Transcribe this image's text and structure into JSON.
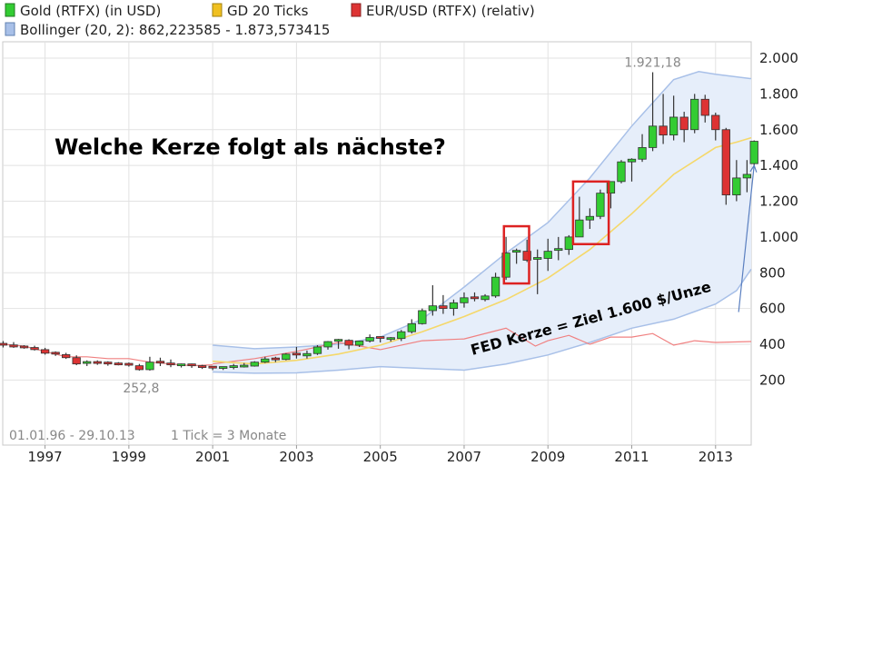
{
  "slide": {
    "headline": "Welche Kerze folgt als nächste?",
    "note": "FED Kerze = Ziel 1.600 $/Unze"
  },
  "legend": [
    {
      "label": "Gold (RTFX) (in USD)",
      "color": "#33cc33"
    },
    {
      "label": "GD 20 Ticks",
      "color": "#f0c020"
    },
    {
      "label": "EUR/USD (RTFX) (relativ)",
      "color": "#dd3333"
    },
    {
      "label": "Bollinger (20, 2): 862,223585 - 1.873,573415",
      "color": "#a8c0e8"
    }
  ],
  "colors": {
    "up": "#33cc33",
    "down": "#dd3333",
    "ma": "#f5d86a",
    "eurusd": "#f08080",
    "band_fill": "#e6eefa",
    "band_line": "#a8c0e8",
    "highlight": "#dd2222",
    "arrow": "#5a7fc0"
  },
  "chart_data": {
    "type": "candlestick",
    "ylim": [
      0,
      2100
    ],
    "yticks": [
      200,
      400,
      600,
      800,
      1000,
      1200,
      1400,
      1600,
      1800,
      2000
    ],
    "ytick_labels": [
      "200",
      "400",
      "600",
      "800",
      "1.000",
      "1.200",
      "1.400",
      "1.600",
      "1.800",
      "2.000"
    ],
    "xlim": [
      1995.99,
      2013.85
    ],
    "xticks": [
      1997,
      1999,
      2001,
      2003,
      2005,
      2007,
      2009,
      2011,
      2013
    ],
    "xtick_labels": [
      "1997",
      "1999",
      "2001",
      "2003",
      "2005",
      "2007",
      "2009",
      "2011",
      "2013"
    ],
    "annotations": {
      "max_label": "1.921,18",
      "min_label": "252,8",
      "range_label": "01.01.96 - 29.10.13",
      "tick_label": "1 Tick = 3 Monate"
    },
    "candles": [
      {
        "t": 1996.0,
        "o": 400,
        "h": 418,
        "l": 382,
        "c": 396
      },
      {
        "t": 1996.25,
        "o": 396,
        "h": 412,
        "l": 380,
        "c": 385
      },
      {
        "t": 1996.5,
        "o": 385,
        "h": 395,
        "l": 375,
        "c": 382
      },
      {
        "t": 1996.75,
        "o": 382,
        "h": 392,
        "l": 365,
        "c": 370
      },
      {
        "t": 1997.0,
        "o": 370,
        "h": 380,
        "l": 342,
        "c": 350
      },
      {
        "t": 1997.25,
        "o": 350,
        "h": 360,
        "l": 335,
        "c": 342
      },
      {
        "t": 1997.5,
        "o": 342,
        "h": 352,
        "l": 318,
        "c": 325
      },
      {
        "t": 1997.75,
        "o": 325,
        "h": 338,
        "l": 283,
        "c": 290
      },
      {
        "t": 1998.0,
        "o": 290,
        "h": 310,
        "l": 278,
        "c": 298
      },
      {
        "t": 1998.25,
        "o": 298,
        "h": 310,
        "l": 285,
        "c": 295
      },
      {
        "t": 1998.5,
        "o": 295,
        "h": 305,
        "l": 280,
        "c": 290
      },
      {
        "t": 1998.75,
        "o": 290,
        "h": 300,
        "l": 282,
        "c": 288
      },
      {
        "t": 1999.0,
        "o": 288,
        "h": 298,
        "l": 275,
        "c": 280
      },
      {
        "t": 1999.25,
        "o": 280,
        "h": 290,
        "l": 252.8,
        "c": 258
      },
      {
        "t": 1999.5,
        "o": 258,
        "h": 330,
        "l": 252.8,
        "c": 300
      },
      {
        "t": 1999.75,
        "o": 300,
        "h": 325,
        "l": 278,
        "c": 290
      },
      {
        "t": 2000.0,
        "o": 290,
        "h": 315,
        "l": 272,
        "c": 280
      },
      {
        "t": 2000.25,
        "o": 280,
        "h": 292,
        "l": 270,
        "c": 285
      },
      {
        "t": 2000.5,
        "o": 285,
        "h": 292,
        "l": 268,
        "c": 275
      },
      {
        "t": 2000.75,
        "o": 275,
        "h": 285,
        "l": 262,
        "c": 272
      },
      {
        "t": 2001.0,
        "o": 272,
        "h": 278,
        "l": 255,
        "c": 262
      },
      {
        "t": 2001.25,
        "o": 262,
        "h": 275,
        "l": 256,
        "c": 270
      },
      {
        "t": 2001.5,
        "o": 270,
        "h": 290,
        "l": 260,
        "c": 275
      },
      {
        "t": 2001.75,
        "o": 275,
        "h": 295,
        "l": 270,
        "c": 278
      },
      {
        "t": 2002.0,
        "o": 278,
        "h": 305,
        "l": 275,
        "c": 300
      },
      {
        "t": 2002.25,
        "o": 300,
        "h": 330,
        "l": 295,
        "c": 318
      },
      {
        "t": 2002.5,
        "o": 318,
        "h": 330,
        "l": 300,
        "c": 315
      },
      {
        "t": 2002.75,
        "o": 315,
        "h": 350,
        "l": 310,
        "c": 345
      },
      {
        "t": 2003.0,
        "o": 345,
        "h": 385,
        "l": 320,
        "c": 335
      },
      {
        "t": 2003.25,
        "o": 335,
        "h": 365,
        "l": 320,
        "c": 348
      },
      {
        "t": 2003.5,
        "o": 348,
        "h": 395,
        "l": 340,
        "c": 385
      },
      {
        "t": 2003.75,
        "o": 385,
        "h": 418,
        "l": 370,
        "c": 415
      },
      {
        "t": 2004.0,
        "o": 415,
        "h": 430,
        "l": 375,
        "c": 422
      },
      {
        "t": 2004.25,
        "o": 422,
        "h": 428,
        "l": 372,
        "c": 395
      },
      {
        "t": 2004.5,
        "o": 395,
        "h": 420,
        "l": 385,
        "c": 418
      },
      {
        "t": 2004.75,
        "o": 418,
        "h": 455,
        "l": 410,
        "c": 438
      },
      {
        "t": 2005.0,
        "o": 438,
        "h": 445,
        "l": 410,
        "c": 428
      },
      {
        "t": 2005.25,
        "o": 428,
        "h": 440,
        "l": 415,
        "c": 432
      },
      {
        "t": 2005.5,
        "o": 432,
        "h": 480,
        "l": 418,
        "c": 470
      },
      {
        "t": 2005.75,
        "o": 470,
        "h": 540,
        "l": 460,
        "c": 515
      },
      {
        "t": 2006.0,
        "o": 515,
        "h": 600,
        "l": 510,
        "c": 588
      },
      {
        "t": 2006.25,
        "o": 588,
        "h": 730,
        "l": 560,
        "c": 615
      },
      {
        "t": 2006.5,
        "o": 615,
        "h": 675,
        "l": 570,
        "c": 600
      },
      {
        "t": 2006.75,
        "o": 600,
        "h": 650,
        "l": 560,
        "c": 632
      },
      {
        "t": 2007.0,
        "o": 632,
        "h": 690,
        "l": 605,
        "c": 660
      },
      {
        "t": 2007.25,
        "o": 660,
        "h": 690,
        "l": 640,
        "c": 650
      },
      {
        "t": 2007.5,
        "o": 650,
        "h": 680,
        "l": 640,
        "c": 670
      },
      {
        "t": 2007.75,
        "o": 670,
        "h": 800,
        "l": 660,
        "c": 775
      },
      {
        "t": 2008.0,
        "o": 775,
        "h": 1000,
        "l": 760,
        "c": 910
      },
      {
        "t": 2008.25,
        "o": 910,
        "h": 935,
        "l": 850,
        "c": 920
      },
      {
        "t": 2008.5,
        "o": 920,
        "h": 985,
        "l": 860,
        "c": 870
      },
      {
        "t": 2008.75,
        "o": 870,
        "h": 930,
        "l": 680,
        "c": 880
      },
      {
        "t": 2009.0,
        "o": 880,
        "h": 990,
        "l": 810,
        "c": 920
      },
      {
        "t": 2009.25,
        "o": 920,
        "h": 1000,
        "l": 870,
        "c": 930
      },
      {
        "t": 2009.5,
        "o": 930,
        "h": 1010,
        "l": 900,
        "c": 1000
      },
      {
        "t": 2009.75,
        "o": 1000,
        "h": 1225,
        "l": 1000,
        "c": 1095
      },
      {
        "t": 2010.0,
        "o": 1095,
        "h": 1160,
        "l": 1045,
        "c": 1115
      },
      {
        "t": 2010.25,
        "o": 1115,
        "h": 1265,
        "l": 1100,
        "c": 1245
      },
      {
        "t": 2010.5,
        "o": 1245,
        "h": 1310,
        "l": 1160,
        "c": 1310
      },
      {
        "t": 2010.75,
        "o": 1310,
        "h": 1430,
        "l": 1300,
        "c": 1420
      },
      {
        "t": 2011.0,
        "o": 1420,
        "h": 1440,
        "l": 1310,
        "c": 1435
      },
      {
        "t": 2011.25,
        "o": 1435,
        "h": 1575,
        "l": 1420,
        "c": 1500
      },
      {
        "t": 2011.5,
        "o": 1500,
        "h": 1921.18,
        "l": 1480,
        "c": 1620
      },
      {
        "t": 2011.75,
        "o": 1620,
        "h": 1800,
        "l": 1520,
        "c": 1570
      },
      {
        "t": 2012.0,
        "o": 1570,
        "h": 1790,
        "l": 1540,
        "c": 1670
      },
      {
        "t": 2012.25,
        "o": 1670,
        "h": 1700,
        "l": 1530,
        "c": 1600
      },
      {
        "t": 2012.5,
        "o": 1600,
        "h": 1800,
        "l": 1580,
        "c": 1770
      },
      {
        "t": 2012.75,
        "o": 1770,
        "h": 1795,
        "l": 1640,
        "c": 1680
      },
      {
        "t": 2013.0,
        "o": 1680,
        "h": 1695,
        "l": 1540,
        "c": 1600
      },
      {
        "t": 2013.25,
        "o": 1600,
        "h": 1610,
        "l": 1180,
        "c": 1235
      },
      {
        "t": 2013.5,
        "o": 1235,
        "h": 1430,
        "l": 1200,
        "c": 1330
      },
      {
        "t": 2013.75,
        "o": 1330,
        "h": 1430,
        "l": 1250,
        "c": 1350
      },
      {
        "t": 2013.92,
        "o": 1410,
        "h": 1540,
        "l": 1390,
        "c": 1535
      }
    ],
    "ma": [
      [
        2001.0,
        305
      ],
      [
        2002.0,
        290
      ],
      [
        2003.0,
        310
      ],
      [
        2004.0,
        345
      ],
      [
        2005.0,
        395
      ],
      [
        2006.0,
        470
      ],
      [
        2007.0,
        555
      ],
      [
        2008.0,
        650
      ],
      [
        2009.0,
        770
      ],
      [
        2010.0,
        930
      ],
      [
        2011.0,
        1130
      ],
      [
        2012.0,
        1350
      ],
      [
        2013.0,
        1500
      ],
      [
        2013.5,
        1530
      ],
      [
        2013.85,
        1555
      ]
    ],
    "bollinger_upper": [
      [
        2001.0,
        395
      ],
      [
        2002.0,
        375
      ],
      [
        2003.0,
        385
      ],
      [
        2004.0,
        400
      ],
      [
        2005.0,
        440
      ],
      [
        2006.0,
        540
      ],
      [
        2007.0,
        720
      ],
      [
        2008.0,
        910
      ],
      [
        2009.0,
        1080
      ],
      [
        2010.0,
        1330
      ],
      [
        2011.0,
        1620
      ],
      [
        2012.0,
        1880
      ],
      [
        2012.6,
        1925
      ],
      [
        2013.0,
        1910
      ],
      [
        2013.85,
        1885
      ]
    ],
    "bollinger_lower": [
      [
        2001.0,
        245
      ],
      [
        2002.0,
        238
      ],
      [
        2003.0,
        240
      ],
      [
        2004.0,
        255
      ],
      [
        2005.0,
        275
      ],
      [
        2006.0,
        265
      ],
      [
        2007.0,
        255
      ],
      [
        2008.0,
        290
      ],
      [
        2009.0,
        340
      ],
      [
        2010.0,
        410
      ],
      [
        2011.0,
        490
      ],
      [
        2012.0,
        540
      ],
      [
        2013.0,
        625
      ],
      [
        2013.5,
        700
      ],
      [
        2013.85,
        820
      ]
    ],
    "eurusd_rel": [
      [
        2001.0,
        290
      ],
      [
        2002.0,
        320
      ],
      [
        2003.0,
        360
      ],
      [
        2004.0,
        410
      ],
      [
        2005.0,
        370
      ],
      [
        2006.0,
        420
      ],
      [
        2007.0,
        430
      ],
      [
        2008.0,
        490
      ],
      [
        2008.7,
        390
      ],
      [
        2009.0,
        420
      ],
      [
        2009.5,
        450
      ],
      [
        2010.0,
        400
      ],
      [
        2010.5,
        440
      ],
      [
        2011.0,
        440
      ],
      [
        2011.5,
        460
      ],
      [
        2012.0,
        395
      ],
      [
        2012.5,
        420
      ],
      [
        2013.0,
        410
      ],
      [
        2013.85,
        415
      ]
    ],
    "eurusd_early": [
      [
        1996.0,
        400
      ],
      [
        1996.5,
        390
      ],
      [
        1997.0,
        360
      ],
      [
        1997.5,
        330
      ],
      [
        1998.0,
        330
      ],
      [
        1998.5,
        320
      ],
      [
        1999.0,
        320
      ],
      [
        1999.5,
        300
      ],
      [
        2000.0,
        290
      ],
      [
        2000.5,
        280
      ],
      [
        2001.0,
        285
      ]
    ],
    "highlight_boxes": [
      {
        "t0": 2007.95,
        "t1": 2008.55,
        "v0": 740,
        "v1": 1060
      },
      {
        "t0": 2009.6,
        "t1": 2010.45,
        "v0": 960,
        "v1": 1310
      }
    ],
    "arrow": {
      "from_t": 2013.55,
      "from_v": 580,
      "to_t": 2013.92,
      "to_v": 1400
    }
  }
}
